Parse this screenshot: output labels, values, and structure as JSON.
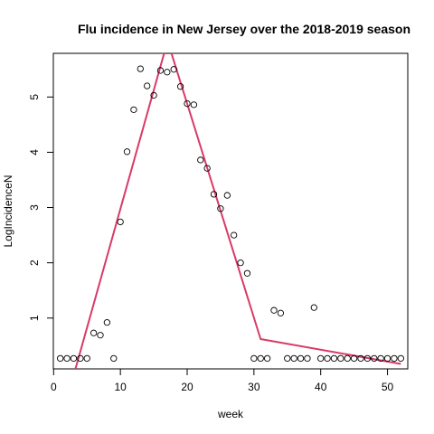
{
  "chart_data": {
    "type": "scatter",
    "title": "Flu incidence in New Jersey over the 2018-2019 season",
    "xlabel": "week",
    "ylabel": "LogIncidenceN",
    "xlim": [
      -0.04,
      53.04
    ],
    "ylim": [
      0.08,
      5.79
    ],
    "x_ticks": [
      0,
      10,
      20,
      30,
      40,
      50
    ],
    "y_ticks": [
      1,
      2,
      3,
      4,
      5
    ],
    "grid": false,
    "colors": {
      "points": "#000000",
      "line": "#d93a68"
    },
    "points": [
      [
        1,
        0.27
      ],
      [
        2,
        0.27
      ],
      [
        3,
        0.27
      ],
      [
        4,
        0.27
      ],
      [
        5,
        0.27
      ],
      [
        6,
        0.73
      ],
      [
        7,
        0.69
      ],
      [
        8,
        0.92
      ],
      [
        9,
        0.27
      ],
      [
        10,
        2.74
      ],
      [
        11,
        4.01
      ],
      [
        12,
        4.77
      ],
      [
        13,
        5.51
      ],
      [
        14,
        5.2
      ],
      [
        15,
        5.03
      ],
      [
        16,
        5.48
      ],
      [
        17,
        5.45
      ],
      [
        18,
        5.5
      ],
      [
        19,
        5.19
      ],
      [
        20,
        4.88
      ],
      [
        21,
        4.86
      ],
      [
        22,
        3.86
      ],
      [
        23,
        3.71
      ],
      [
        24,
        3.24
      ],
      [
        25,
        2.98
      ],
      [
        26,
        3.22
      ],
      [
        27,
        2.5
      ],
      [
        28,
        2.0
      ],
      [
        29,
        1.81
      ],
      [
        30,
        0.27
      ],
      [
        31,
        0.27
      ],
      [
        32,
        0.27
      ],
      [
        33,
        1.14
      ],
      [
        34,
        1.09
      ],
      [
        35,
        0.27
      ],
      [
        36,
        0.27
      ],
      [
        37,
        0.27
      ],
      [
        38,
        0.27
      ],
      [
        39,
        1.19
      ],
      [
        40,
        0.27
      ],
      [
        41,
        0.27
      ],
      [
        42,
        0.27
      ],
      [
        43,
        0.27
      ],
      [
        44,
        0.27
      ],
      [
        45,
        0.27
      ],
      [
        46,
        0.27
      ],
      [
        47,
        0.27
      ],
      [
        48,
        0.27
      ],
      [
        49,
        0.27
      ],
      [
        50,
        0.27
      ],
      [
        51,
        0.27
      ],
      [
        52,
        0.27
      ]
    ],
    "fit_line": [
      [
        3.27,
        0.08
      ],
      [
        16.55,
        5.79
      ],
      [
        17.65,
        5.79
      ],
      [
        31,
        0.62
      ],
      [
        52,
        0.17
      ]
    ]
  }
}
